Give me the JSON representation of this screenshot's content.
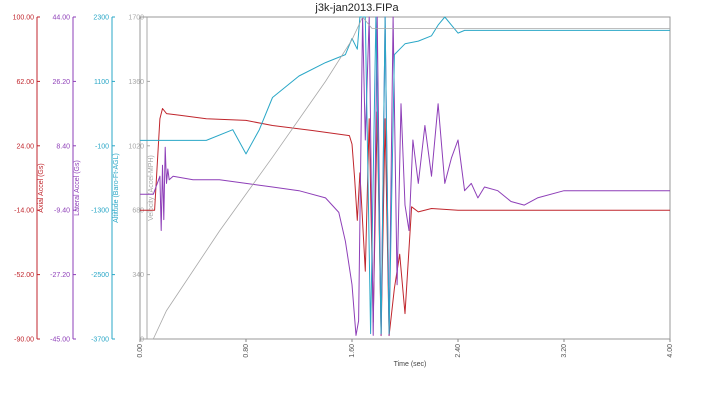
{
  "chart_data": {
    "type": "line",
    "title": "j3k-jan2013.FIPa",
    "xlabel": "Time (sec)",
    "xlim": [
      0,
      4.0
    ],
    "x_ticks": [
      "0.00",
      "0.80",
      "1.60",
      "2.40",
      "3.20",
      "4.00"
    ],
    "grid": false,
    "legend": "none",
    "axes": [
      {
        "id": "axial",
        "label": "Axial Accel (Gs)",
        "color": "#c0262d",
        "ylim": [
          -90,
          100
        ],
        "ticks": [
          "100.00",
          "62.00",
          "24.00",
          "-14.00",
          "-52.00",
          "-90.00"
        ]
      },
      {
        "id": "lateral",
        "label": "Lateral Accel (Gs)",
        "color": "#8e3fb8",
        "ylim": [
          -45,
          44
        ],
        "ticks": [
          "44.00",
          "26.20",
          "8.40",
          "-9.40",
          "-27.20",
          "-45.00"
        ]
      },
      {
        "id": "altitude",
        "label": "Altitude (Baro-Ft-AGL)",
        "color": "#2aa7c7",
        "ylim": [
          -3700,
          2300
        ],
        "ticks": [
          "2300",
          "1100",
          "-100",
          "-1300",
          "-2500",
          "-3700"
        ]
      },
      {
        "id": "velocity",
        "label": "Velocity (Accel-MPH)",
        "color": "#a8a8a8",
        "ylim": [
          0,
          1700
        ],
        "ticks": [
          "1700",
          "1360",
          "1020",
          "680",
          "340",
          "0"
        ]
      }
    ],
    "series": [
      {
        "axis": "axial",
        "color": "#c0262d",
        "x": [
          0,
          0.11,
          0.15,
          0.17,
          0.2,
          0.3,
          0.5,
          0.8,
          1.0,
          1.3,
          1.58,
          1.6,
          1.62,
          1.64,
          1.66,
          1.7,
          1.73,
          1.76,
          1.79,
          1.82,
          1.85,
          1.88,
          1.92,
          1.96,
          2.0,
          2.05,
          2.1,
          2.2,
          2.4,
          2.8,
          3.2,
          3.6,
          3.9,
          4.0
        ],
        "y": [
          -14,
          -14,
          40,
          46,
          43,
          42,
          40,
          39,
          36,
          33,
          30,
          25,
          5,
          -20,
          8,
          -50,
          40,
          -80,
          44,
          -88,
          40,
          -88,
          -60,
          -40,
          -75,
          -12,
          -15,
          -13,
          -14,
          -14,
          -14,
          -14,
          -14,
          -14
        ]
      },
      {
        "axis": "lateral",
        "color": "#8e3fb8",
        "x": [
          0,
          0.1,
          0.15,
          0.16,
          0.17,
          0.18,
          0.19,
          0.2,
          0.21,
          0.22,
          0.25,
          0.4,
          0.6,
          0.8,
          1.0,
          1.2,
          1.4,
          1.5,
          1.55,
          1.6,
          1.63,
          1.65,
          1.68,
          1.7,
          1.73,
          1.76,
          1.79,
          1.82,
          1.85,
          1.88,
          1.91,
          1.94,
          1.97,
          2.0,
          2.03,
          2.06,
          2.1,
          2.15,
          2.2,
          2.25,
          2.3,
          2.35,
          2.4,
          2.45,
          2.5,
          2.55,
          2.6,
          2.7,
          2.8,
          2.9,
          3.0,
          3.2,
          3.4,
          3.6,
          3.8,
          3.9,
          4.0
        ],
        "y": [
          -5,
          -5,
          0,
          -15,
          3,
          -12,
          8,
          -2,
          2,
          -1,
          0,
          -1,
          -1,
          -2,
          -3,
          -4,
          -6,
          -10,
          -18,
          -30,
          -44,
          -40,
          44,
          10,
          44,
          -44,
          44,
          -44,
          44,
          -44,
          44,
          -30,
          20,
          -8,
          -15,
          10,
          -2,
          14,
          0,
          20,
          -2,
          5,
          10,
          -4,
          -2,
          -6,
          -3,
          -4,
          -7,
          -8,
          -6,
          -4,
          -4,
          -4,
          -4,
          -4,
          -4
        ]
      },
      {
        "axis": "altitude",
        "color": "#2aa7c7",
        "x": [
          0,
          0.2,
          0.5,
          0.7,
          0.8,
          0.9,
          1.0,
          1.2,
          1.4,
          1.55,
          1.6,
          1.64,
          1.66,
          1.7,
          1.74,
          1.78,
          1.82,
          1.85,
          1.88,
          1.92,
          1.96,
          2.0,
          2.1,
          2.2,
          2.25,
          2.3,
          2.35,
          2.4,
          2.45,
          2.55,
          2.65,
          2.8,
          3.0,
          3.2,
          3.4,
          3.6,
          3.8,
          4.0
        ],
        "y": [
          0,
          0,
          0,
          200,
          -250,
          200,
          800,
          1200,
          1450,
          1600,
          1900,
          1700,
          2300,
          2300,
          -3600,
          2300,
          -3600,
          2300,
          -3600,
          1600,
          1700,
          1800,
          1850,
          1950,
          2150,
          2300,
          2150,
          2000,
          2050,
          2050,
          2050,
          2050,
          2050,
          2050,
          2050,
          2050,
          2050,
          2050
        ]
      },
      {
        "axis": "velocity",
        "color": "#a8a8a8",
        "x": [
          0,
          0.1,
          0.2,
          0.6,
          1.0,
          1.4,
          1.6,
          1.68,
          1.75,
          2.0,
          2.5,
          3.0,
          3.5,
          4.0
        ],
        "y": [
          0,
          0,
          150,
          570,
          960,
          1360,
          1580,
          1700,
          1640,
          1640,
          1640,
          1640,
          1640,
          1640
        ]
      }
    ]
  }
}
